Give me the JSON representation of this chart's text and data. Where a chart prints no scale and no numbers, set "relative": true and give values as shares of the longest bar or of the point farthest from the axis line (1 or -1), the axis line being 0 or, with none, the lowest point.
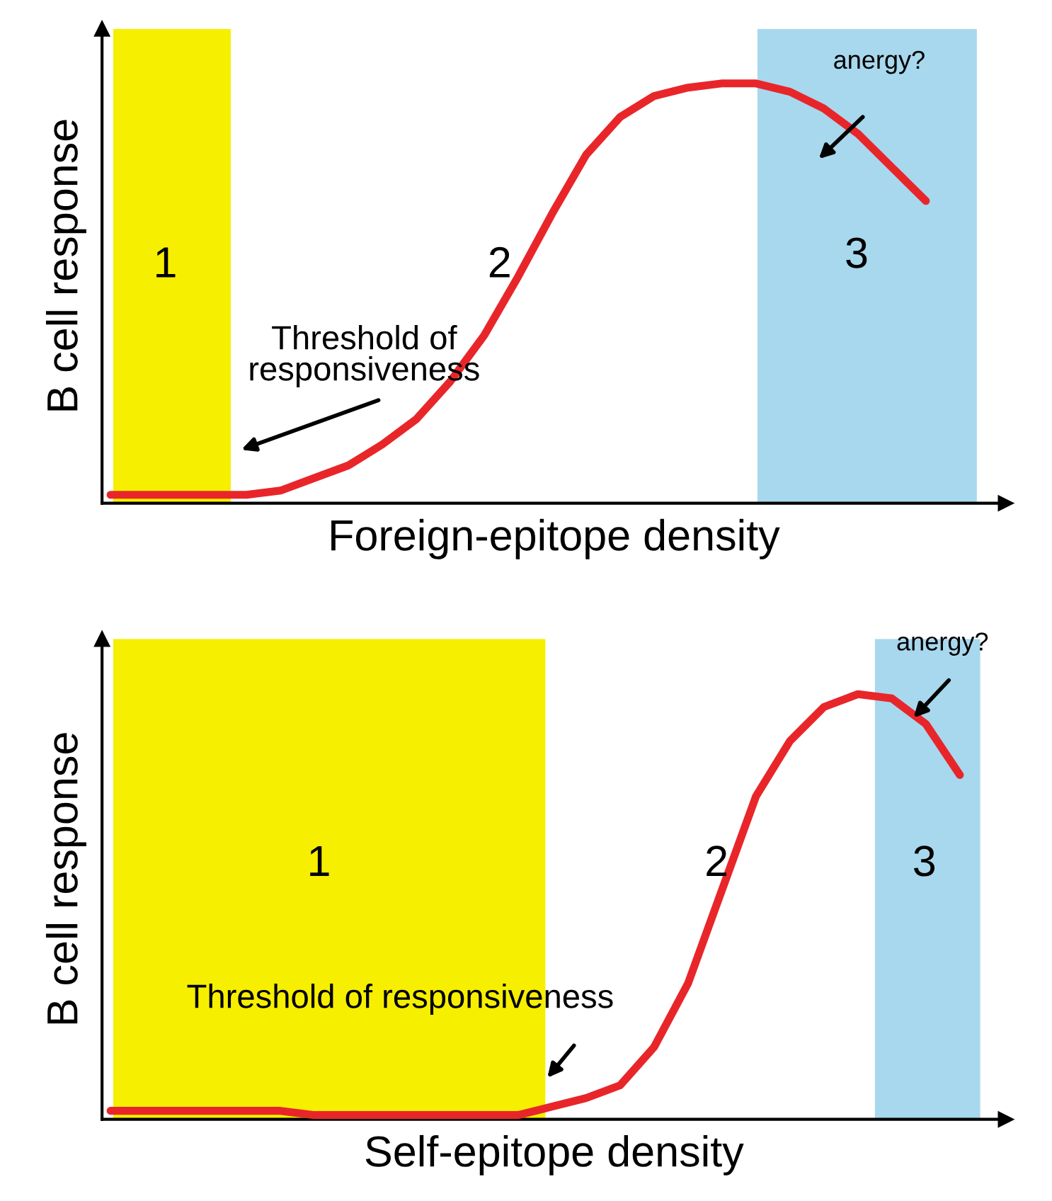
{
  "chart_data": [
    {
      "type": "line",
      "relative": true,
      "xlabel": "Foreign-epitope density",
      "ylabel": "B cell response",
      "tick_labels": false,
      "categories": [
        null,
        null,
        null,
        null,
        null,
        null,
        null,
        null,
        null,
        null,
        null,
        null,
        null,
        null,
        null,
        null,
        null,
        null,
        null,
        null,
        null,
        null,
        null,
        null,
        null,
        null,
        null
      ],
      "series": [
        {
          "color": "#e8262a",
          "values": [
            0.02,
            0.02,
            0.02,
            0.02,
            0.02,
            0.03,
            0.06,
            0.09,
            0.14,
            0.2,
            0.29,
            0.4,
            0.54,
            0.69,
            0.83,
            0.92,
            0.97,
            0.99,
            1,
            1,
            0.98,
            0.94,
            0.88,
            0.8,
            0.72,
            null,
            null
          ]
        }
      ],
      "annotations": [
        "1",
        "2",
        "3",
        "Threshold of\nresponsiveness",
        "anergy?"
      ]
    },
    {
      "type": "line",
      "relative": true,
      "xlabel": "Self-epitope density",
      "ylabel": "B cell response",
      "tick_labels": false,
      "categories": [
        null,
        null,
        null,
        null,
        null,
        null,
        null,
        null,
        null,
        null,
        null,
        null,
        null,
        null,
        null,
        null,
        null,
        null,
        null,
        null,
        null,
        null,
        null,
        null,
        null,
        null,
        null
      ],
      "series": [
        {
          "color": "#e8262a",
          "values": [
            0.02,
            0.02,
            0.02,
            0.02,
            0.02,
            0.02,
            0.01,
            0.01,
            0.01,
            0.01,
            0.01,
            0.01,
            0.01,
            0.03,
            0.05,
            0.08,
            0.17,
            0.32,
            0.54,
            0.76,
            0.89,
            0.97,
            1,
            0.99,
            0.93,
            0.81,
            null
          ]
        }
      ],
      "annotations": [
        "1",
        "2",
        "3",
        "Threshold of responsiveness",
        "anergy?"
      ]
    }
  ]
}
